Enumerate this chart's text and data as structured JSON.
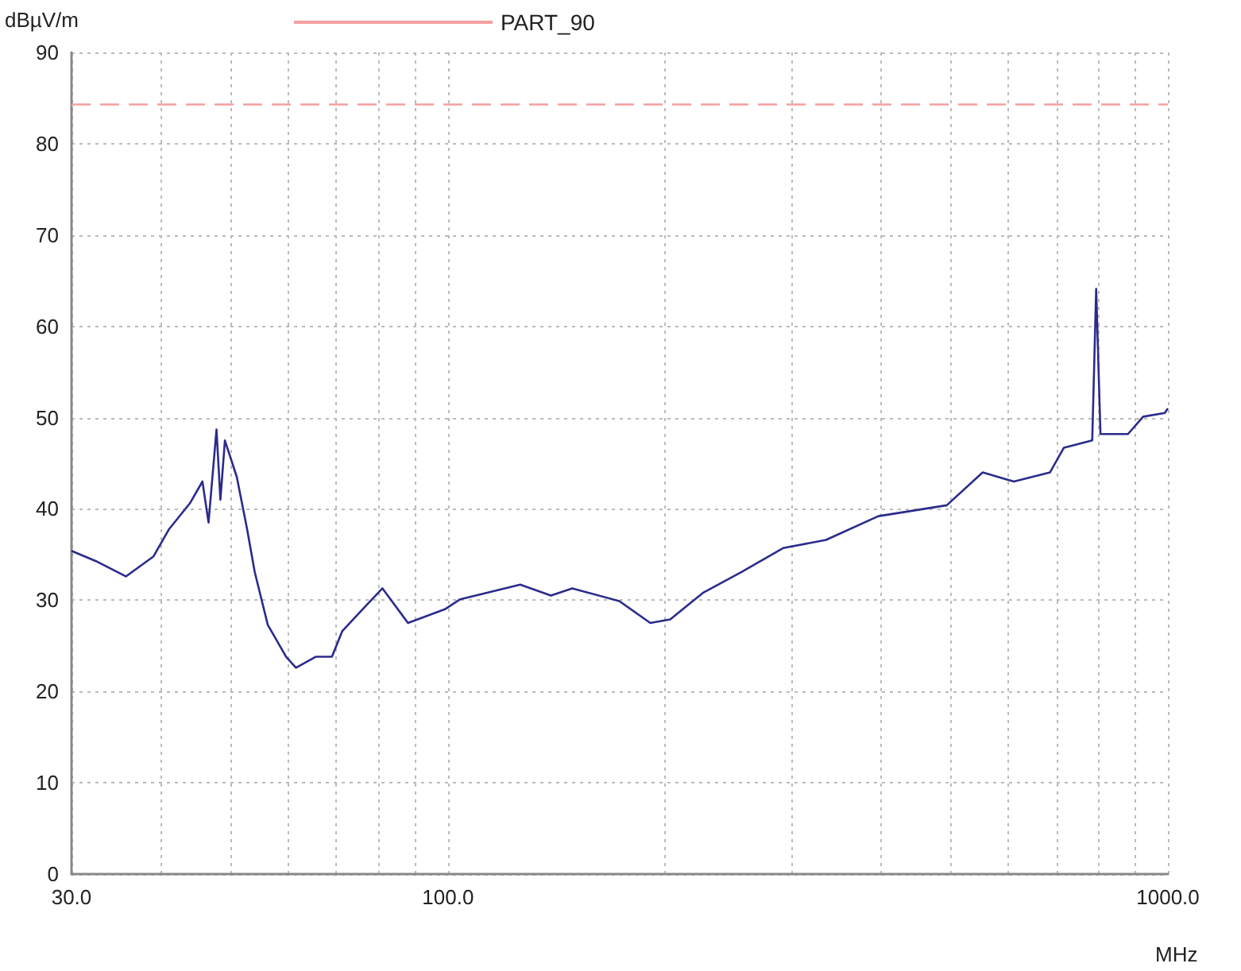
{
  "chart_data": {
    "type": "line",
    "xlabel": "MHz",
    "ylabel": "dBµV/m",
    "log": "x",
    "grid": true,
    "legend": "top",
    "marker": "none",
    "xlim": [
      30,
      1000
    ],
    "ylim": [
      0,
      90
    ],
    "xticks": [
      {
        "value": 30,
        "label": "30.0"
      },
      {
        "value": 40,
        "label": null
      },
      {
        "value": 50,
        "label": null
      },
      {
        "value": 60,
        "label": null
      },
      {
        "value": 70,
        "label": null
      },
      {
        "value": 80,
        "label": null
      },
      {
        "value": 90,
        "label": null
      },
      {
        "value": 100,
        "label": "100.0"
      },
      {
        "value": 200,
        "label": null
      },
      {
        "value": 300,
        "label": null
      },
      {
        "value": 400,
        "label": null
      },
      {
        "value": 500,
        "label": null
      },
      {
        "value": 600,
        "label": null
      },
      {
        "value": 700,
        "label": null
      },
      {
        "value": 800,
        "label": null
      },
      {
        "value": 900,
        "label": null
      },
      {
        "value": 1000,
        "label": "1000.0"
      }
    ],
    "yticks": [
      0,
      10,
      20,
      30,
      40,
      50,
      60,
      70,
      80,
      90
    ],
    "series": [
      {
        "color": "#2b2b8c",
        "line_style": "solid",
        "x": [
          30,
          32.4,
          35.7,
          39.0,
          41.0,
          43.8,
          45.6,
          46.5,
          47.7,
          48.3,
          49.0,
          50.9,
          52.6,
          53.9,
          56.2,
          59.6,
          61.5,
          65.5,
          69.0,
          71.3,
          76.1,
          81.1,
          88.0,
          99.0,
          104,
          126,
          139,
          148.8,
          173,
          191,
          203.6,
          226,
          256,
          292,
          335,
          396,
          493,
          553,
          611,
          686,
          717,
          785,
          795,
          806,
          880,
          924,
          990,
          1000
        ],
        "values": [
          35.4,
          34.3,
          32.6,
          34.8,
          37.8,
          40.6,
          43.0,
          38.5,
          48.7,
          41.0,
          47.5,
          43.5,
          37.8,
          33.1,
          27.3,
          23.8,
          22.6,
          23.8,
          23.8,
          26.6,
          29.0,
          31.3,
          27.5,
          29.0,
          30.1,
          31.7,
          30.5,
          31.3,
          29.9,
          27.5,
          27.9,
          30.8,
          33.1,
          35.7,
          36.6,
          39.2,
          40.4,
          44.0,
          43.0,
          44.0,
          46.7,
          47.5,
          64.1,
          48.2,
          48.2,
          50.1,
          50.5,
          51.0
        ]
      },
      {
        "name": "PART_90",
        "color": "#f4a0a0",
        "line_style": "dashed",
        "x": [
          30,
          1000
        ],
        "values": [
          84.3,
          84.3
        ]
      }
    ]
  }
}
